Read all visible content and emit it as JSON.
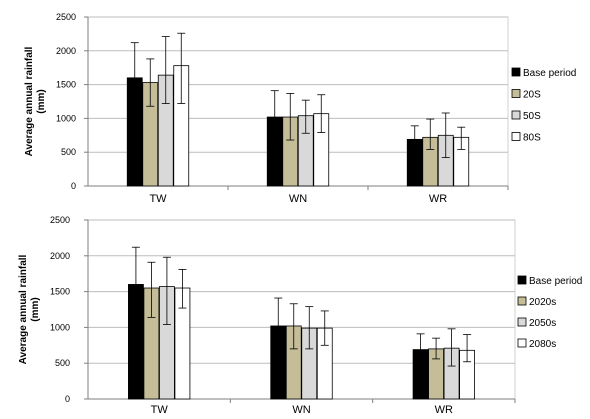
{
  "chart_data": [
    {
      "type": "bar",
      "ylabel_line1": "Average annual rainfall",
      "ylabel_line2": "(mm)",
      "ylim": [
        0,
        2500
      ],
      "yticks": [
        0,
        500,
        1000,
        1500,
        2000,
        2500
      ],
      "categories": [
        "TW",
        "WN",
        "WR"
      ],
      "grid": true,
      "legend_position": "right",
      "series": [
        {
          "name": "Base period",
          "color": "#000000",
          "values": [
            1600,
            1020,
            690
          ],
          "err_low": [
            1080,
            630,
            480
          ],
          "err_high": [
            2120,
            1410,
            890
          ]
        },
        {
          "name": "20S",
          "color": "#c4bd97",
          "values": [
            1530,
            1020,
            720
          ],
          "err_low": [
            1180,
            680,
            540
          ],
          "err_high": [
            1880,
            1370,
            990
          ]
        },
        {
          "name": "50S",
          "color": "#d9d9d9",
          "values": [
            1640,
            1040,
            750
          ],
          "err_low": [
            1220,
            780,
            420
          ],
          "err_high": [
            2210,
            1270,
            1080
          ]
        },
        {
          "name": "80S",
          "color": "#ffffff",
          "values": [
            1780,
            1070,
            720
          ],
          "err_low": [
            1220,
            790,
            540
          ],
          "err_high": [
            2260,
            1350,
            870
          ]
        }
      ]
    },
    {
      "type": "bar",
      "ylabel_line1": "Average annual rainfall",
      "ylabel_line2": "(mm)",
      "ylim": [
        0,
        2500
      ],
      "yticks": [
        0,
        500,
        1000,
        1500,
        2000,
        2500
      ],
      "categories": [
        "TW",
        "WN",
        "WR"
      ],
      "grid": true,
      "legend_position": "right",
      "series": [
        {
          "name": "Base period",
          "color": "#000000",
          "values": [
            1600,
            1020,
            690
          ],
          "err_low": [
            1080,
            630,
            480
          ],
          "err_high": [
            2120,
            1410,
            910
          ]
        },
        {
          "name": "2020s",
          "color": "#c4bd97",
          "values": [
            1550,
            1020,
            700
          ],
          "err_low": [
            1140,
            700,
            560
          ],
          "err_high": [
            1910,
            1330,
            850
          ]
        },
        {
          "name": "2050s",
          "color": "#d9d9d9",
          "values": [
            1570,
            990,
            710
          ],
          "err_low": [
            1040,
            700,
            460
          ],
          "err_high": [
            1980,
            1290,
            980
          ]
        },
        {
          "name": "2080s",
          "color": "#ffffff",
          "values": [
            1550,
            990,
            680
          ],
          "err_low": [
            1270,
            750,
            520
          ],
          "err_high": [
            1810,
            1230,
            900
          ]
        }
      ]
    }
  ]
}
